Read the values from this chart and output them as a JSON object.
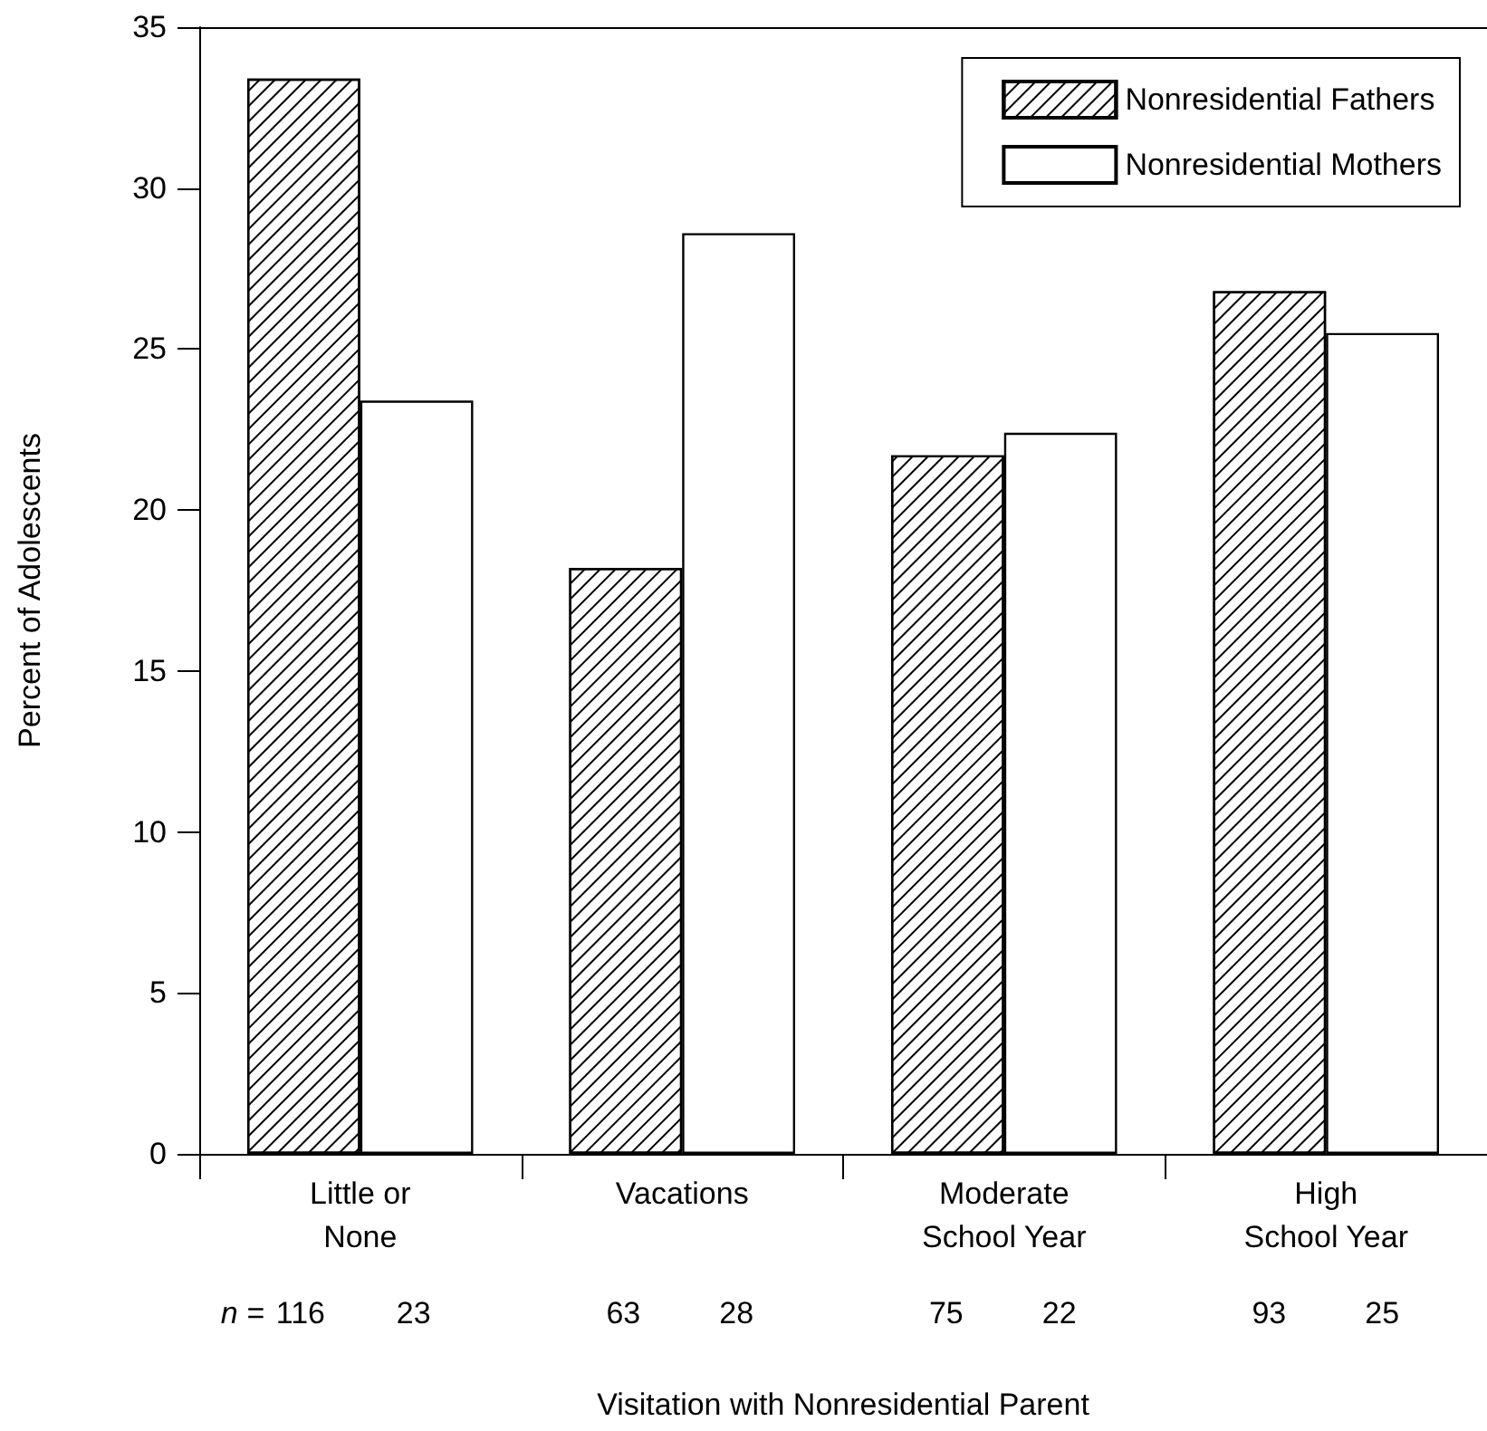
{
  "chart_data": {
    "type": "bar",
    "xlabel": "Visitation with Nonresidential Parent",
    "ylabel": "Percent of Adolescents",
    "categories": [
      "Little or\nNone",
      "Vacations",
      "Moderate\nSchool Year",
      "High\nSchool Year"
    ],
    "series": [
      {
        "name": "Nonresidential Fathers",
        "color": "#ffffff",
        "values": [
          33.4,
          18.2,
          21.7,
          26.8
        ]
      },
      {
        "name": "Nonresidential Mothers",
        "color": "#ffffff",
        "values": [
          23.4,
          28.6,
          22.4,
          25.5
        ]
      }
    ],
    "ylim": [
      0,
      35
    ],
    "yticks": [
      0,
      5,
      10,
      15,
      20,
      25,
      30,
      35
    ],
    "grid": false,
    "legend": "top right",
    "annotations": [
      "n =",
      "116",
      "23",
      "63",
      "28",
      "75",
      "22",
      "93",
      "25"
    ]
  }
}
